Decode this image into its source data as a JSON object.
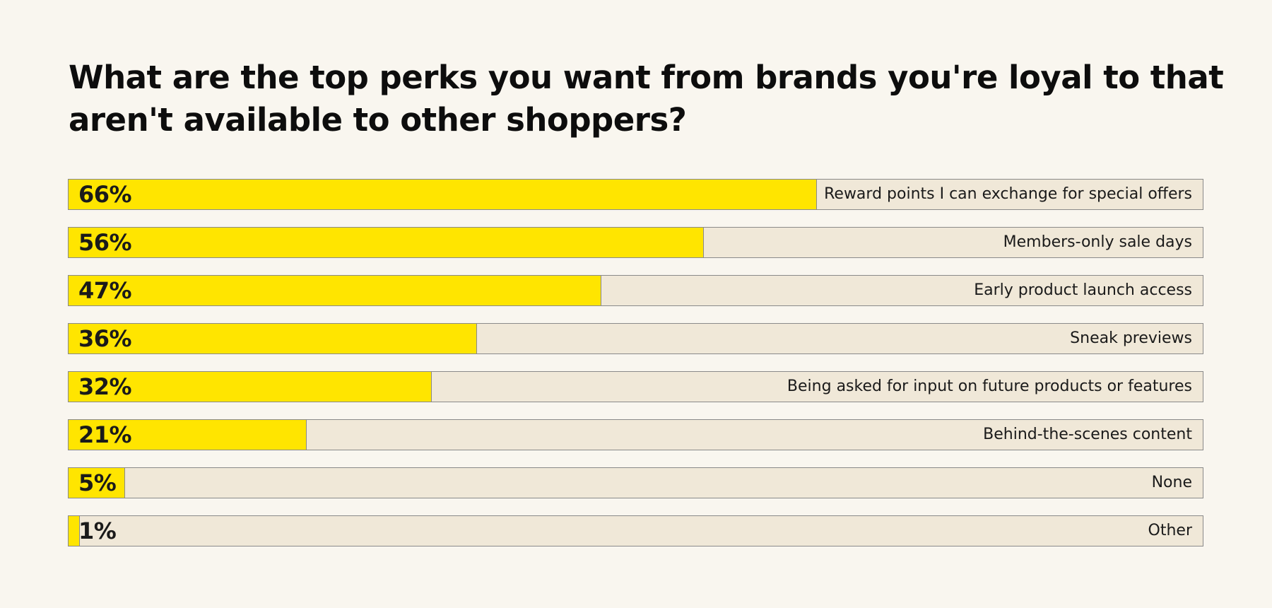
{
  "chart_data": {
    "type": "bar",
    "orientation": "horizontal",
    "title": "What are the top perks you want from brands you're loyal to that aren't available to other shoppers?",
    "categories": [
      "Reward points I can exchange for special offers",
      "Members-only sale days",
      "Early product launch access",
      "Sneak previews",
      "Being asked for input on future products or features",
      "Behind-the-scenes content",
      "None",
      "Other"
    ],
    "values": [
      66,
      56,
      47,
      36,
      32,
      21,
      5,
      1
    ],
    "value_labels": [
      "66%",
      "56%",
      "47%",
      "36%",
      "32%",
      "21%",
      "5%",
      "1%"
    ],
    "unit": "%",
    "xlim": [
      0,
      100
    ],
    "grid": false,
    "colors": {
      "fill": "#ffe500",
      "track": "#f0e8d8",
      "border": "#8a8a8a",
      "background": "#f9f6ef"
    }
  }
}
